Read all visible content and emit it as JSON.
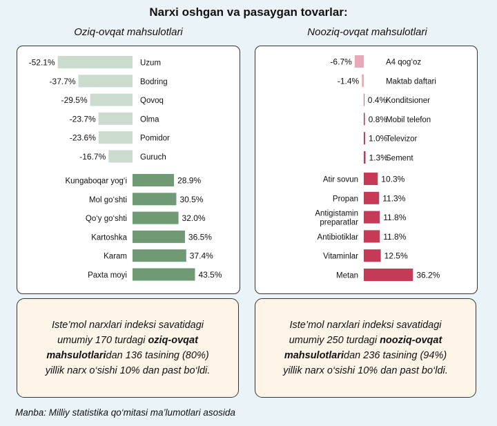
{
  "title": "Narxi oshgan va pasaygan tovarlar:",
  "colors": {
    "food_negative": "#cbdccf",
    "food_positive": "#6f9a74",
    "nonfood_negative": "#e9a9b6",
    "nonfood_positive": "#c73a57"
  },
  "chart_data": [
    {
      "type": "bar",
      "title": "Oziq-ovqat mahsulotlari",
      "categories": [
        "Uzum",
        "Bodring",
        "Qovoq",
        "Olma",
        "Pomidor",
        "Guruch",
        "Kungaboqar yog‘i",
        "Mol go‘shti",
        "Qo‘y go‘shti",
        "Kartoshka",
        "Karam",
        "Paxta moyi"
      ],
      "values": [
        -52.1,
        -37.7,
        -29.5,
        -23.7,
        -23.6,
        -16.7,
        28.9,
        30.5,
        32.0,
        36.5,
        37.4,
        43.5
      ],
      "labels": [
        "-52.1%",
        "-37.7%",
        "-29.5%",
        "-23.7%",
        "-23.6%",
        "-16.7%",
        "28.9%",
        "30.5%",
        "32.0%",
        "36.5%",
        "37.4%",
        "43.5%"
      ],
      "unit": "%"
    },
    {
      "type": "bar",
      "title": "Nooziq-ovqat mahsulotlari",
      "categories": [
        "A4 qog‘oz",
        "Maktab daftari",
        "Konditsioner",
        "Mobil telefon",
        "Televizor",
        "Sement",
        "Atir sovun",
        "Propan",
        "Antigistamin preparatlar",
        "Antibiotiklar",
        "Vitaminlar",
        "Metan"
      ],
      "values": [
        -6.7,
        -1.4,
        0.4,
        0.8,
        1.0,
        1.3,
        10.3,
        11.3,
        11.8,
        11.8,
        12.5,
        36.2
      ],
      "labels": [
        "-6.7%",
        "-1.4%",
        "0.4%",
        "0.8%",
        "1.0%",
        "1.3%",
        "10.3%",
        "11.3%",
        "11.8%",
        "11.8%",
        "12.5%",
        "36.2%"
      ],
      "unit": "%"
    }
  ],
  "notes": {
    "left": {
      "before": "Iste’mol narxlari indeksi savatidagi umumiy 170 turdagi ",
      "bold": "oziq-ovqat mahsulotlari",
      "after": "dan 136 tasining (80%) yillik narx o‘sishi 10% dan past bo‘ldi."
    },
    "right": {
      "before": "Iste’mol narxlari indeksi savatidagi umumiy 250 turdagi ",
      "bold": "nooziq-ovqat mahsulotlari",
      "after": "dan 236 tasining (94%) yillik narx o‘sishi 10% dan past bo‘ldi."
    }
  },
  "source": "Manba: Milliy statistika qo‘mitasi ma’lumotlari asosida"
}
